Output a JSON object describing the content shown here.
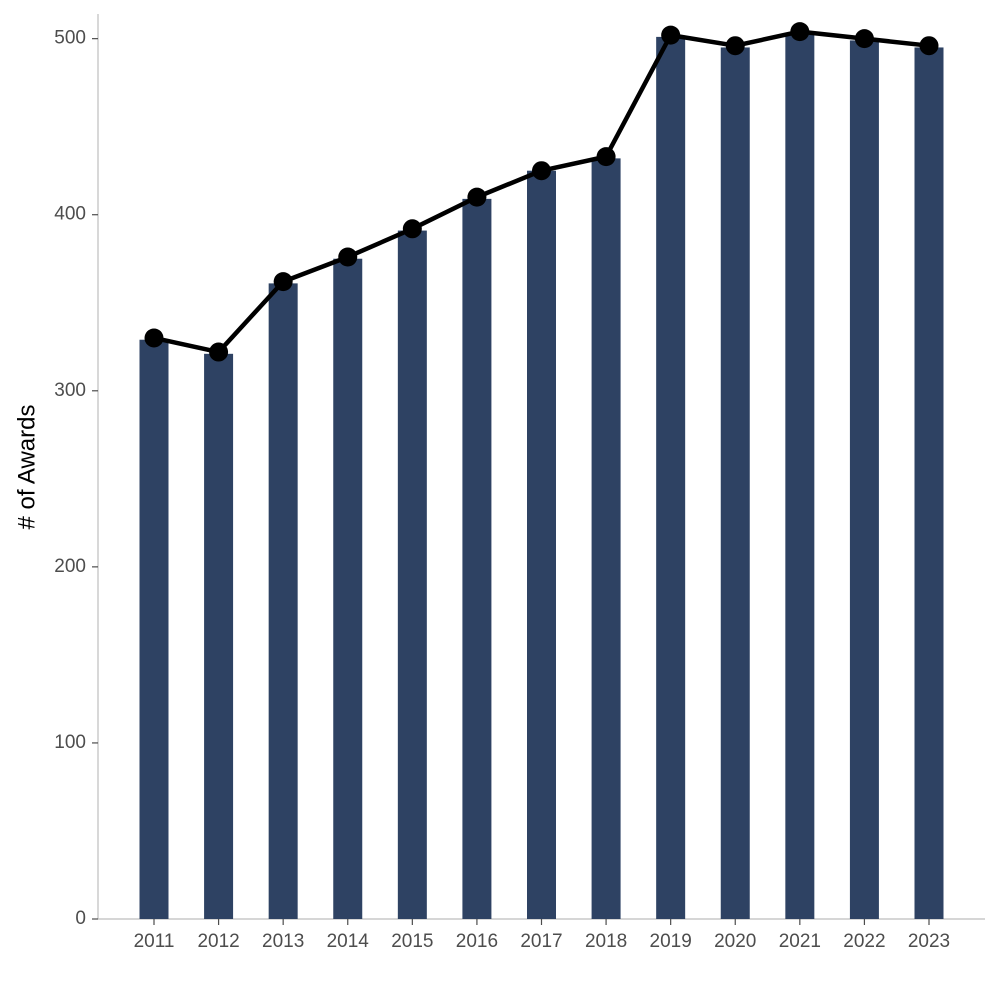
{
  "chart_data": {
    "type": "bar",
    "y_label": "# of Awards",
    "categories": [
      "2011",
      "2012",
      "2013",
      "2014",
      "2015",
      "2016",
      "2017",
      "2018",
      "2019",
      "2020",
      "2021",
      "2022",
      "2023"
    ],
    "series": [
      {
        "type": "bar",
        "color": "#2e4263",
        "values": [
          329,
          321,
          361,
          375,
          391,
          409,
          425,
          432,
          501,
          495,
          503,
          499,
          495
        ]
      },
      {
        "type": "line",
        "color": "#000000",
        "values": [
          330,
          322,
          362,
          376,
          392,
          410,
          425,
          433,
          502,
          496,
          504,
          500,
          496
        ]
      }
    ],
    "ylim": [
      0,
      514
    ],
    "yticks": [
      0,
      100,
      200,
      300,
      400,
      500
    ],
    "grid": false
  }
}
